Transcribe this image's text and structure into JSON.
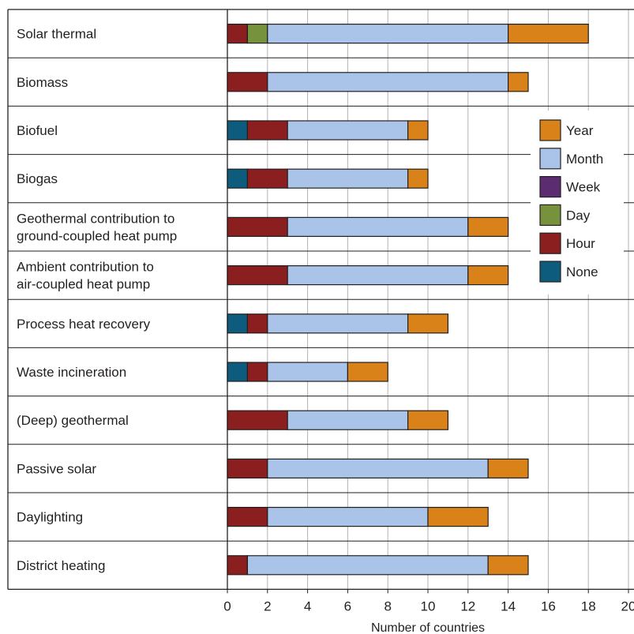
{
  "chart_data": {
    "type": "bar",
    "orientation": "horizontal",
    "stacked": true,
    "xlabel": "Number of countries",
    "xlim": [
      0,
      20
    ],
    "xticks": [
      0,
      2,
      4,
      6,
      8,
      10,
      12,
      14,
      16,
      18,
      20
    ],
    "xtick_labels": [
      "0",
      "2",
      "4",
      "6",
      "8",
      "10",
      "12",
      "14",
      "16",
      "18",
      "20"
    ],
    "grid": "vertical",
    "legend_position": "right",
    "categories": [
      [
        "Solar thermal"
      ],
      [
        "Biomass"
      ],
      [
        "Biofuel"
      ],
      [
        "Biogas"
      ],
      [
        "Geothermal contribution to",
        "ground-coupled heat pump"
      ],
      [
        "Ambient contribution to",
        "air-coupled heat pump"
      ],
      [
        "Process heat recovery"
      ],
      [
        "Waste incineration"
      ],
      [
        "(Deep) geothermal"
      ],
      [
        "Passive solar"
      ],
      [
        "Daylighting"
      ],
      [
        "District heating"
      ]
    ],
    "series": [
      {
        "name": "None",
        "color": "#0d5c7d",
        "values": [
          0,
          0,
          1,
          1,
          0,
          0,
          1,
          1,
          0,
          0,
          0,
          0
        ]
      },
      {
        "name": "Hour",
        "color": "#8b1f1f",
        "values": [
          1,
          2,
          2,
          2,
          3,
          3,
          1,
          1,
          3,
          2,
          2,
          1
        ]
      },
      {
        "name": "Day",
        "color": "#76923c",
        "values": [
          1,
          0,
          0,
          0,
          0,
          0,
          0,
          0,
          0,
          0,
          0,
          0
        ]
      },
      {
        "name": "Week",
        "color": "#5b2c6f",
        "values": [
          0,
          0,
          0,
          0,
          0,
          0,
          0,
          0,
          0,
          0,
          0,
          0
        ]
      },
      {
        "name": "Month",
        "color": "#a9c4e8",
        "values": [
          12,
          12,
          6,
          6,
          9,
          9,
          7,
          4,
          6,
          11,
          8,
          12
        ]
      },
      {
        "name": "Year",
        "color": "#d9821a",
        "values": [
          4,
          1,
          1,
          1,
          2,
          2,
          2,
          2,
          2,
          2,
          3,
          2
        ]
      }
    ],
    "legend_order": [
      "Year",
      "Month",
      "Week",
      "Day",
      "Hour",
      "None"
    ]
  }
}
